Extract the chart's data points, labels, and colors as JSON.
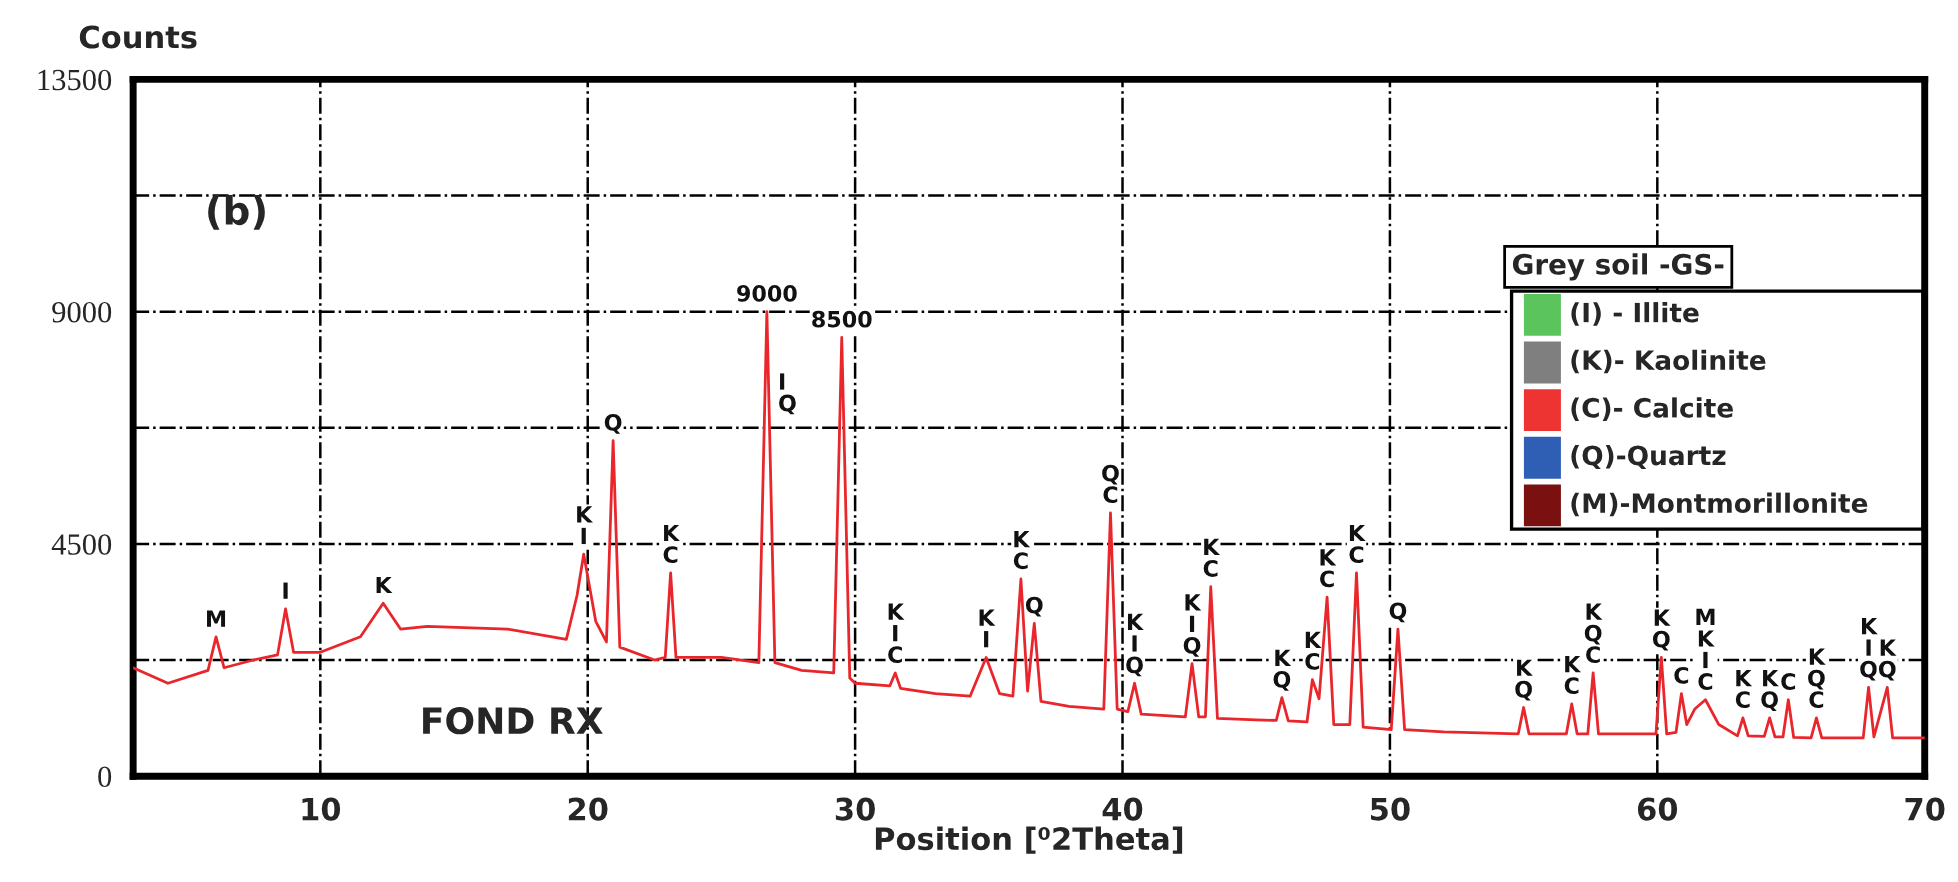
{
  "chart_data": [
    {
      "type": "line",
      "ylabel": "Counts",
      "xlabel": "Position [⁰2Theta]",
      "x": [
        3.0,
        4.3,
        5.8,
        6.1,
        6.4,
        7.5,
        8.4,
        8.7,
        9.0,
        10,
        11.5,
        12.35,
        13.0,
        14,
        17,
        19.2,
        19.6,
        19.85,
        20.3,
        20.7,
        20.95,
        21.2,
        22.5,
        22.9,
        23.1,
        23.3,
        25,
        26.4,
        26.7,
        27.0,
        28,
        29.2,
        29.5,
        29.8,
        30,
        31.3,
        31.5,
        31.7,
        33,
        34.3,
        34.9,
        35.4,
        35.9,
        36.2,
        36.45,
        36.7,
        36.95,
        38,
        39.3,
        39.55,
        39.8,
        40.2,
        40.45,
        40.7,
        42.35,
        42.6,
        42.85,
        43.1,
        43.3,
        43.55,
        45,
        45.75,
        45.96,
        46.2,
        46.9,
        47.1,
        47.35,
        47.65,
        47.9,
        48.5,
        48.75,
        49.0,
        50.05,
        50.3,
        50.55,
        52,
        54.8,
        55.0,
        55.2,
        56.6,
        56.8,
        57.0,
        57.4,
        57.6,
        57.8,
        59.95,
        60.15,
        60.35,
        60.7,
        60.9,
        61.1,
        61.4,
        61.8,
        62.3,
        63.0,
        63.2,
        63.4,
        64.0,
        64.2,
        64.4,
        64.7,
        64.9,
        65.1,
        65.75,
        65.95,
        66.15,
        67.7,
        67.9,
        68.1,
        68.6,
        68.8,
        70
      ],
      "series": [
        {
          "type": "line",
          "color": "#e8262b",
          "values": [
            2100,
            1800,
            2050,
            2700,
            2100,
            2250,
            2350,
            3240,
            2400,
            2400,
            2700,
            3350,
            2850,
            2900,
            2850,
            2650,
            3500,
            4300,
            3000,
            2600,
            6500,
            2500,
            2250,
            2300,
            3940,
            2300,
            2300,
            2200,
            9000,
            2200,
            2050,
            2000,
            8500,
            1900,
            1800,
            1750,
            2000,
            1700,
            1600,
            1550,
            2300,
            1600,
            1550,
            3820,
            1650,
            2960,
            1450,
            1350,
            1300,
            5100,
            1300,
            1250,
            1800,
            1200,
            1150,
            2180,
            1150,
            1150,
            3670,
            1120,
            1090,
            1080,
            1520,
            1070,
            1050,
            1870,
            1500,
            3470,
            1000,
            1000,
            3940,
            950,
            900,
            2850,
            900,
            860,
            820,
            1330,
            820,
            820,
            1400,
            820,
            820,
            2000,
            820,
            820,
            2300,
            820,
            850,
            1600,
            1000,
            1300,
            1480,
            1000,
            780,
            1130,
            780,
            770,
            1130,
            760,
            760,
            1480,
            750,
            740,
            1130,
            740,
            740,
            1720,
            760,
            1720,
            740,
            740
          ]
        }
      ],
      "xlim": [
        3,
        70
      ],
      "xticks": [
        10,
        20,
        30,
        40,
        50,
        60,
        70
      ],
      "ylim": [
        0,
        13500
      ],
      "yticks": [
        0,
        {
          "value": 2250,
          "label": null
        },
        4500,
        {
          "value": 6750,
          "label": null
        },
        9000,
        {
          "value": 11250,
          "label": null
        },
        13500
      ],
      "grid": true,
      "annotations": [
        "(b)",
        "FOND RX",
        {
          "text": "M",
          "x": 6.1,
          "y": 2700
        },
        {
          "text": "I",
          "x": 8.7,
          "y": 3240
        },
        {
          "text": "K",
          "x": 12.35,
          "y": 3350
        },
        {
          "text": "K\nI",
          "x": 19.85,
          "y": 4300
        },
        {
          "text": "Q",
          "x": 20.95,
          "y": 6500
        },
        {
          "text": "K\nC",
          "x": 23.1,
          "y": 3940
        },
        {
          "text": "9000",
          "x": 26.7,
          "y": 9000
        },
        {
          "text": "I\nQ",
          "x": 26.7,
          "y": 7400
        },
        {
          "text": "8500",
          "x": 29.5,
          "y": 8500
        },
        {
          "text": "K\nI\nC",
          "x": 31.5,
          "y": 2000
        },
        {
          "text": "K\nI",
          "x": 34.9,
          "y": 2300
        },
        {
          "text": "K\nC",
          "x": 36.2,
          "y": 3820
        },
        {
          "text": "Q",
          "x": 36.7,
          "y": 2960
        },
        {
          "text": "Q\nC",
          "x": 39.55,
          "y": 5100
        },
        {
          "text": "K\nI\nQ",
          "x": 40.45,
          "y": 1800
        },
        {
          "text": "K\nI\nQ",
          "x": 42.6,
          "y": 2180
        },
        {
          "text": "K\nC",
          "x": 43.3,
          "y": 3670
        },
        {
          "text": "K\nQ",
          "x": 45.96,
          "y": 1520
        },
        {
          "text": "K\nC",
          "x": 47.1,
          "y": 1870
        },
        {
          "text": "K\nC",
          "x": 47.65,
          "y": 3470
        },
        {
          "text": "K\nC",
          "x": 48.75,
          "y": 3940
        },
        {
          "text": "Q",
          "x": 50.3,
          "y": 2850
        },
        {
          "text": "K\nQ",
          "x": 55.0,
          "y": 1330
        },
        {
          "text": "K\nC",
          "x": 56.8,
          "y": 1400
        },
        {
          "text": "K\nQ\nC",
          "x": 57.6,
          "y": 2000
        },
        {
          "text": "K\nQ",
          "x": 60.15,
          "y": 2300
        },
        {
          "text": "C",
          "x": 60.9,
          "y": 1600
        },
        {
          "text": "M\nK\nI\nC",
          "x": 61.8,
          "y": 1480
        },
        {
          "text": "K\nC",
          "x": 63.2,
          "y": 1130
        },
        {
          "text": "K\nQ",
          "x": 64.2,
          "y": 1130
        },
        {
          "text": "C",
          "x": 64.9,
          "y": 1480
        },
        {
          "text": "K\nQ\nC",
          "x": 65.95,
          "y": 1130
        },
        {
          "text": "K\nI\nQ",
          "x": 67.9,
          "y": 1720
        },
        {
          "text": "K\nQ",
          "x": 68.6,
          "y": 1720
        }
      ]
    },
    {
      "type": "other",
      "title": "Grey soil -GS-",
      "categories": [
        "(I) - Illite",
        "(K)- Kaolinite",
        "(C)- Calcite",
        "(Q)-Quartz",
        "(M)-Montmorillonite"
      ],
      "colors": [
        "#5cc45c",
        "#7f7f7f",
        "#ee3333",
        "#2f5fb5",
        "#7a1010"
      ]
    }
  ]
}
